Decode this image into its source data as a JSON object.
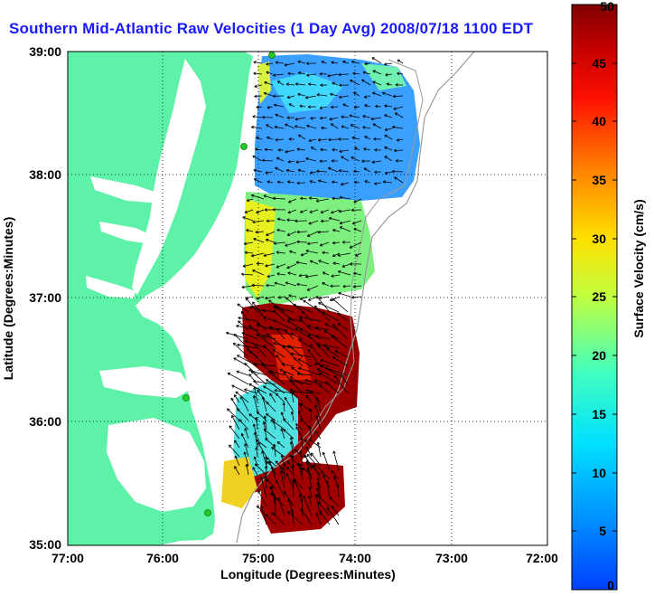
{
  "title": "Southern Mid-Atlantic Raw Velocities (1 Day Avg) 2008/07/18 1100 EDT",
  "map": {
    "xlabel": "Longitude (Degrees:Minutes)",
    "ylabel": "Latitude (Degrees:Minutes)",
    "x_ticks": [
      "77:00",
      "76:00",
      "75:00",
      "74:00",
      "73:00",
      "72:00"
    ],
    "y_ticks": [
      "39:00",
      "38:00",
      "37:00",
      "36:00",
      "35:00"
    ],
    "xlim": [
      -77,
      -72
    ],
    "ylim": [
      35,
      39
    ],
    "grid": "dotted",
    "land_color": "#5ef2a8",
    "water_color": "#ffffff",
    "station_color": "#22cc22"
  },
  "colorbar": {
    "label": "Surface Velocity (cm/s)",
    "ticks": [
      "50",
      "45",
      "40",
      "35",
      "30",
      "25",
      "20",
      "15",
      "10",
      "5",
      "0"
    ],
    "min": 0,
    "max": 50,
    "colormap": "jet"
  }
}
